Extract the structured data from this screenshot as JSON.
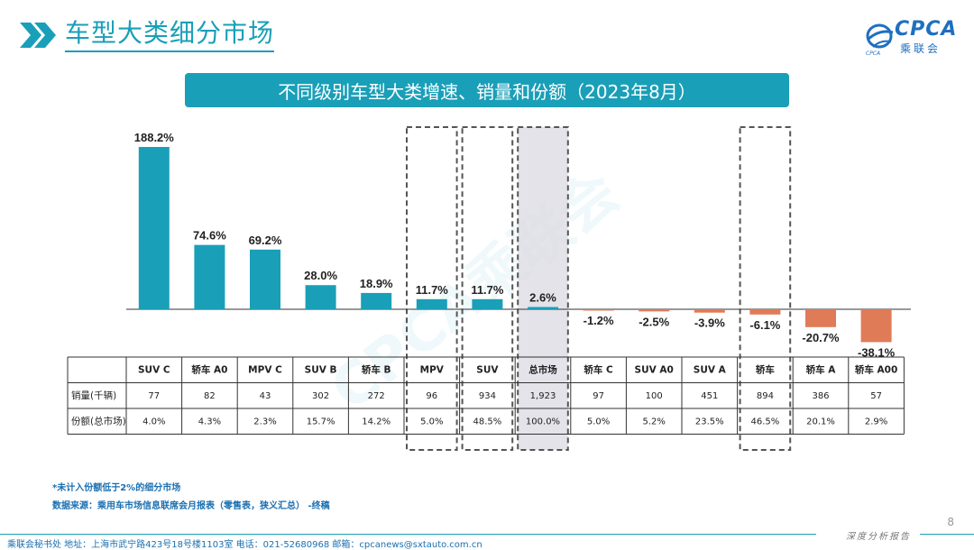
{
  "header": {
    "page_title": "车型大类细分市场",
    "logo_text": "CPCA",
    "logo_cn": "乘联会",
    "logo_sub": "CPCA"
  },
  "banner": {
    "title": "不同级别车型大类增速、销量和份额（2023年8月）"
  },
  "watermark": "CPCA乘联会",
  "chart_data": {
    "type": "bar",
    "categories": [
      "SUV C",
      "轿车 A0",
      "MPV C",
      "SUV B",
      "轿车 B",
      "MPV",
      "SUV",
      "总市场",
      "轿车 C",
      "SUV A0",
      "SUV A",
      "轿车",
      "轿车 A",
      "轿车 A00"
    ],
    "values": [
      188.2,
      74.6,
      69.2,
      28.0,
      18.9,
      11.7,
      11.7,
      2.6,
      -1.2,
      -2.5,
      -3.9,
      -6.1,
      -20.7,
      -38.1
    ],
    "value_labels": [
      "188.2%",
      "74.6%",
      "69.2%",
      "28.0%",
      "18.9%",
      "11.7%",
      "11.7%",
      "2.6%",
      "-1.2%",
      "-2.5%",
      "-3.9%",
      "-6.1%",
      "-20.7%",
      "-38.1%"
    ],
    "unit": "%",
    "colors": {
      "positive": "#1a9fb8",
      "negative": "#e07b58",
      "highlight_box": "#555555",
      "highlight_fill": "#dcdce4"
    },
    "highlighted": [
      "MPV",
      "SUV",
      "总市场",
      "轿车"
    ],
    "filled_highlight": [
      "总市场"
    ],
    "table": {
      "row_labels": [
        "销量(千辆)",
        "份额(总市场)"
      ],
      "sales": [
        "77",
        "82",
        "43",
        "302",
        "272",
        "96",
        "934",
        "1,923",
        "97",
        "100",
        "451",
        "894",
        "386",
        "57"
      ],
      "share": [
        "4.0%",
        "4.3%",
        "2.3%",
        "15.7%",
        "14.2%",
        "5.0%",
        "48.5%",
        "100.0%",
        "5.0%",
        "5.2%",
        "23.5%",
        "46.5%",
        "20.1%",
        "2.9%"
      ]
    }
  },
  "footnotes": {
    "note": "*未计入份额低于2%的细分市场",
    "source": "数据来源：乘用车市场信息联席会月报表（零售表，狭义汇总） -终稿"
  },
  "footer": {
    "contact": "乘联会秘书处   地址：上海市武宁路423号18号楼1103室  电话：021-52680968   邮箱：cpcanews@sxtauto.com.cn",
    "right": "深度分析报告",
    "page": "8"
  }
}
